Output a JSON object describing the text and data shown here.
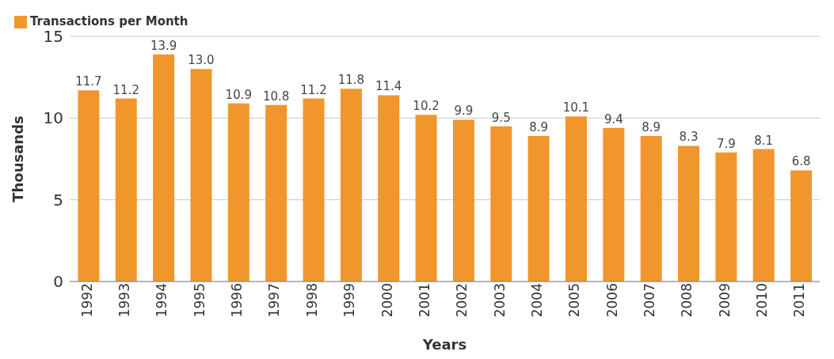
{
  "chart_data": {
    "type": "bar",
    "xlabel": "Years",
    "ylabel": "Thousands",
    "categories": [
      "1992",
      "1993",
      "1994",
      "1995",
      "1996",
      "1997",
      "1998",
      "1999",
      "2000",
      "2001",
      "2002",
      "2003",
      "2004",
      "2005",
      "2006",
      "2007",
      "2008",
      "2009",
      "2010",
      "2011"
    ],
    "series": [
      {
        "name": "Transactions per Month",
        "color": "#f0962c",
        "values": [
          11.7,
          11.2,
          13.9,
          13.0,
          10.9,
          10.8,
          11.2,
          11.8,
          11.4,
          10.2,
          9.9,
          9.5,
          8.9,
          10.1,
          9.4,
          8.9,
          8.3,
          7.9,
          8.1,
          6.8
        ]
      }
    ],
    "value_labels": [
      "11.7",
      "11.2",
      "13.9",
      "13.0",
      "10.9",
      "10.8",
      "11.2",
      "11.8",
      "11.4",
      "10.2",
      "9.9",
      "9.5",
      "8.9",
      "10.1",
      "9.4",
      "8.9",
      "8.3",
      "7.9",
      "8.1",
      "6.8"
    ],
    "ylim": [
      0,
      15
    ],
    "yticks": [
      0,
      5,
      10,
      15
    ],
    "grid": "y",
    "legend": "top left"
  }
}
